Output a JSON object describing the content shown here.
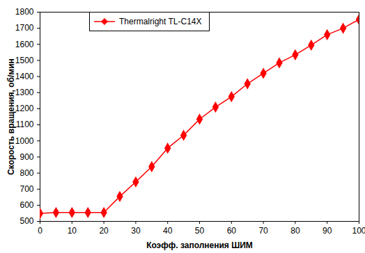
{
  "chart_data": {
    "type": "line",
    "x_label": "Коэфф. заполнения ШИМ",
    "y_label": "Скорость вращения, об/мин",
    "x": [
      0,
      5,
      10,
      15,
      20,
      25,
      30,
      35,
      40,
      45,
      50,
      55,
      60,
      65,
      70,
      75,
      80,
      85,
      90,
      95,
      100
    ],
    "series": [
      {
        "name": "Thermalright TL-C14X",
        "color": "#ff0000",
        "marker": "diamond",
        "values": [
          550,
          555,
          555,
          555,
          555,
          655,
          745,
          840,
          955,
          1035,
          1135,
          1210,
          1275,
          1355,
          1420,
          1485,
          1535,
          1595,
          1660,
          1700,
          1755
        ]
      }
    ],
    "xlim": [
      0,
      100
    ],
    "xticks": [
      0,
      10,
      20,
      30,
      40,
      50,
      60,
      70,
      80,
      90,
      100
    ],
    "ylim": [
      500,
      1800
    ],
    "yticks": [
      500,
      600,
      700,
      800,
      900,
      1000,
      1100,
      1200,
      1300,
      1400,
      1500,
      1600,
      1700,
      1800
    ],
    "grid": false,
    "legend": "upper left"
  }
}
